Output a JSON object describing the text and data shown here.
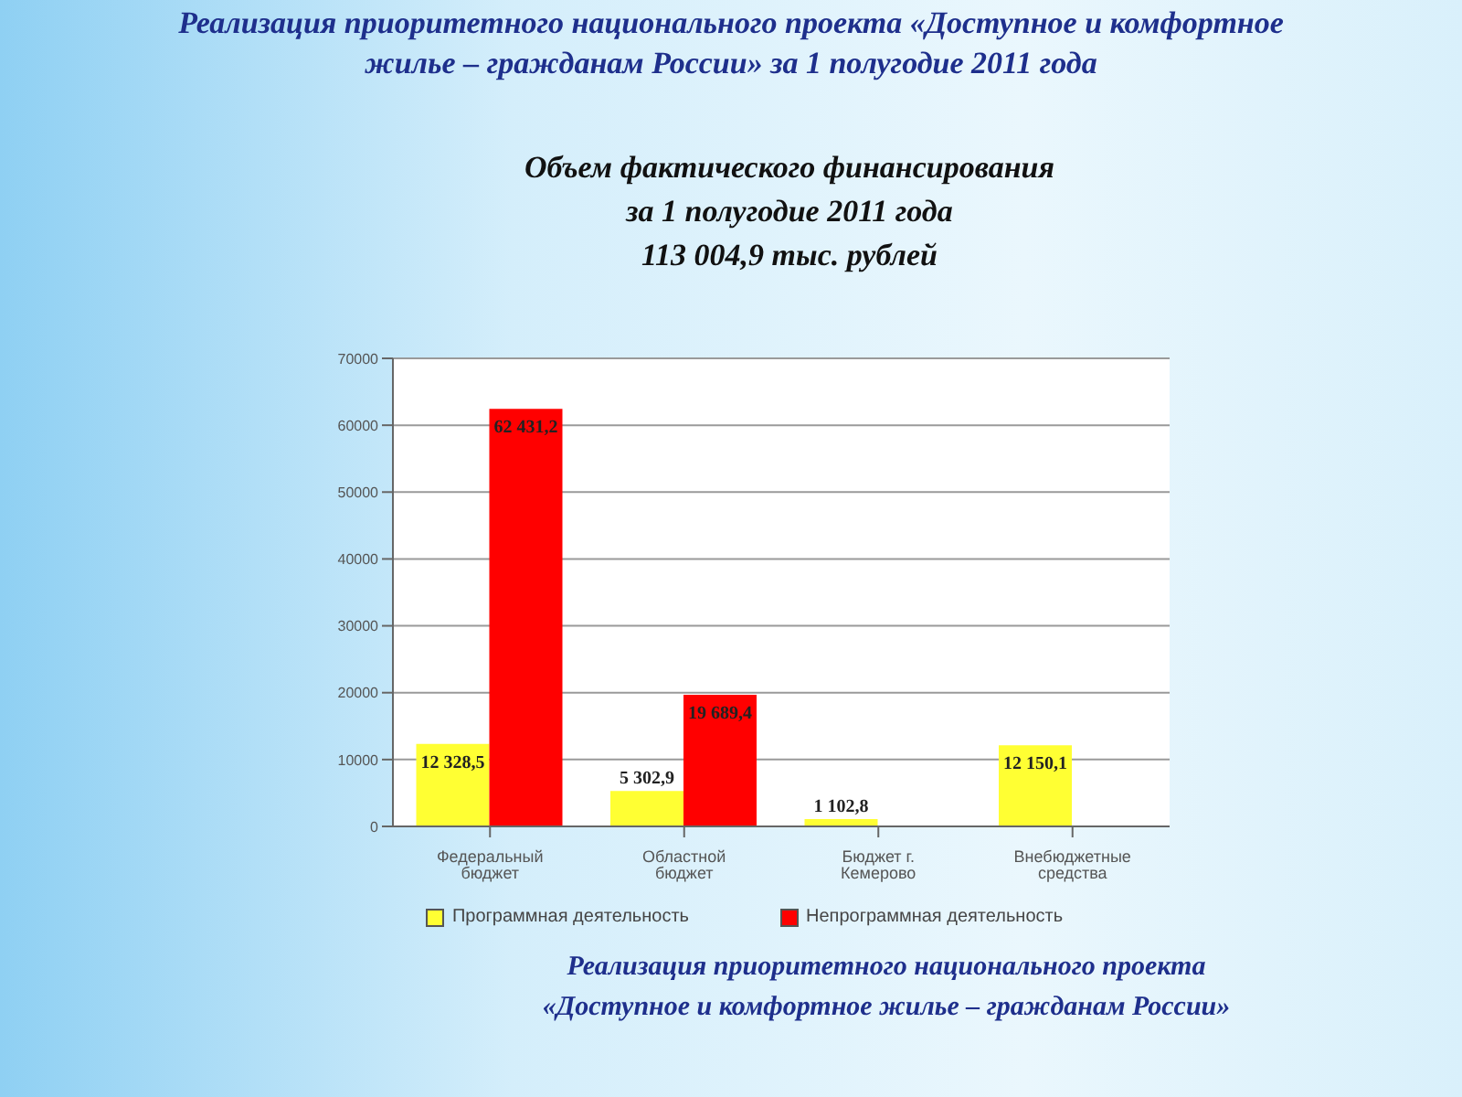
{
  "chart_data": {
    "type": "bar",
    "title": "Реализация приоритетного национального проекта «Доступное и комфортное жилье – гражданам России» за 1 полугодие 2011 года",
    "subtitle": "Объем фактического финансирования\nза 1 полугодие 2011 года\n113 004,9 тыс. рублей",
    "annotations": [
      "Реализация приоритетного национального проекта\n«Доступное и комфортное жилье – гражданам России»"
    ],
    "categories": [
      "Федеральный бюджет",
      "Областной бюджет",
      "Бюджет г. Кемерово",
      "Внебюджетные средства"
    ],
    "series": [
      {
        "name": "Программная деятельность",
        "color": "#ffff33",
        "values": [
          12328.5,
          5302.9,
          1102.8,
          12150.1
        ],
        "value_labels": [
          "12 328,5",
          "5 302,9",
          "1 102,8",
          "12 150,1"
        ]
      },
      {
        "name": "Непрограммная деятельность",
        "color": "#ff0000",
        "values": [
          62431.2,
          19689.4,
          null,
          null
        ],
        "value_labels": [
          "62 431,2",
          "19 689,4",
          null,
          null
        ]
      }
    ],
    "ylim": [
      0,
      70000
    ],
    "yticks": [
      0,
      10000,
      20000,
      30000,
      40000,
      50000,
      60000,
      70000
    ],
    "grid": "y",
    "legend": "bottom"
  }
}
